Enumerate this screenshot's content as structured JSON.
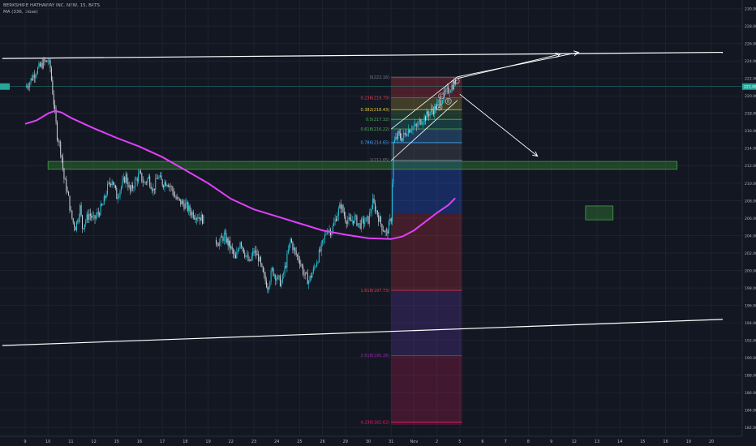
{
  "legend": {
    "symbol_line": "BERKSHIRE HATHAWAY INC. NEW, 15, BATS",
    "ma_line": "MA (336, close)"
  },
  "price_badge": "221.08",
  "colors": {
    "background": "#131722",
    "grid": "#1e2230",
    "candle_up": "#26c6da",
    "candle_down": "#d1d4dc",
    "ma": "#e040fb",
    "trendline": "#ffffff",
    "zone_green": "#2e7d32",
    "badge": "#26a69a"
  },
  "chart_data": {
    "type": "candlestick",
    "x_ticks": [
      "9",
      "10",
      "11",
      "12",
      "15",
      "16",
      "17",
      "18",
      "19",
      "22",
      "23",
      "24",
      "25",
      "26",
      "29",
      "30",
      "31",
      "Nov",
      "2",
      "5",
      "6",
      "7",
      "8",
      "9",
      "12",
      "13",
      "14",
      "15",
      "16",
      "19",
      "20"
    ],
    "y_ticks": [
      182,
      184,
      186,
      188,
      190,
      192,
      194,
      196,
      198,
      200,
      202,
      204,
      206,
      208,
      210,
      212,
      214,
      216,
      218,
      220,
      222,
      224,
      226,
      228,
      230
    ],
    "y_labels": [
      "182.00",
      "184.00",
      "186.00",
      "188.00",
      "190.00",
      "192.00",
      "194.00",
      "196.00",
      "198.00",
      "200.00",
      "202.00",
      "204.00",
      "206.00",
      "208.00",
      "210.00",
      "212.00",
      "214.00",
      "216.00",
      "218.00",
      "220.00",
      "222.00",
      "224.00",
      "226.00",
      "228.00",
      "230.00"
    ],
    "ylim": [
      181,
      231
    ],
    "last_price": 221.08,
    "price_path": [
      [
        0.0,
        221.0
      ],
      [
        0.2,
        221.6
      ],
      [
        0.4,
        222.6
      ],
      [
        0.6,
        223.2
      ],
      [
        0.8,
        223.8
      ],
      [
        1.0,
        224.0
      ],
      [
        1.1,
        223.2
      ],
      [
        1.2,
        220.5
      ],
      [
        1.3,
        218.0
      ],
      [
        1.4,
        215.5
      ],
      [
        1.5,
        214.5
      ],
      [
        1.6,
        213.0
      ],
      [
        1.7,
        210.5
      ],
      [
        1.8,
        209.5
      ],
      [
        1.9,
        208.2
      ],
      [
        2.0,
        206.5
      ],
      [
        2.1,
        205.5
      ],
      [
        2.2,
        205.0
      ],
      [
        2.3,
        206.0
      ],
      [
        2.4,
        207.2
      ],
      [
        2.5,
        205.0
      ],
      [
        2.6,
        205.5
      ],
      [
        2.8,
        206.5
      ],
      [
        3.0,
        205.8
      ],
      [
        3.2,
        206.6
      ],
      [
        3.4,
        207.5
      ],
      [
        3.6,
        209.5
      ],
      [
        3.8,
        210.5
      ],
      [
        4.0,
        208.5
      ],
      [
        4.2,
        209.6
      ],
      [
        4.4,
        210.8
      ],
      [
        4.6,
        209.0
      ],
      [
        4.8,
        210.2
      ],
      [
        5.0,
        211.0
      ],
      [
        5.2,
        210.0
      ],
      [
        5.4,
        210.6
      ],
      [
        5.6,
        209.2
      ],
      [
        5.8,
        210.8
      ],
      [
        6.0,
        210.0
      ],
      [
        6.2,
        210.2
      ],
      [
        6.4,
        209.4
      ],
      [
        6.6,
        208.2
      ],
      [
        6.8,
        207.8
      ],
      [
        7.0,
        207.5
      ],
      [
        7.2,
        206.8
      ],
      [
        7.4,
        206.4
      ],
      [
        7.6,
        206.2
      ],
      [
        7.8,
        205.8
      ],
      [
        8.3,
        203.5
      ],
      [
        8.5,
        203.2
      ],
      [
        8.7,
        204.0
      ],
      [
        9.0,
        202.5
      ],
      [
        9.2,
        201.2
      ],
      [
        9.4,
        203.5
      ],
      [
        9.6,
        202.0
      ],
      [
        9.8,
        200.8
      ],
      [
        10.0,
        202.2
      ],
      [
        10.2,
        201.5
      ],
      [
        10.4,
        199.5
      ],
      [
        10.6,
        198.2
      ],
      [
        10.8,
        200.0
      ],
      [
        11.0,
        199.2
      ],
      [
        11.2,
        198.5
      ],
      [
        11.4,
        200.8
      ],
      [
        11.6,
        203.5
      ],
      [
        11.8,
        202.0
      ],
      [
        12.0,
        201.2
      ],
      [
        12.2,
        199.5
      ],
      [
        12.4,
        198.8
      ],
      [
        12.6,
        200.0
      ],
      [
        12.8,
        201.5
      ],
      [
        13.0,
        203.0
      ],
      [
        13.2,
        204.8
      ],
      [
        13.4,
        204.5
      ],
      [
        13.6,
        206.2
      ],
      [
        13.8,
        207.5
      ],
      [
        14.0,
        206.0
      ],
      [
        14.2,
        205.5
      ],
      [
        14.4,
        206.0
      ],
      [
        14.6,
        205.2
      ],
      [
        14.8,
        205.6
      ],
      [
        15.0,
        205.8
      ],
      [
        15.2,
        207.8
      ],
      [
        15.4,
        206.5
      ],
      [
        15.6,
        205.0
      ],
      [
        15.8,
        204.2
      ],
      [
        16.0,
        206.0
      ],
      [
        16.1,
        214.5
      ],
      [
        16.3,
        215.5
      ],
      [
        16.5,
        215.2
      ],
      [
        16.7,
        216.0
      ],
      [
        16.9,
        216.5
      ],
      [
        17.1,
        216.4
      ],
      [
        17.3,
        217.2
      ],
      [
        17.5,
        217.6
      ],
      [
        17.7,
        218.2
      ],
      [
        17.9,
        218.5
      ],
      [
        18.1,
        219.3
      ],
      [
        18.3,
        220.0
      ],
      [
        18.5,
        220.7
      ],
      [
        18.7,
        221.3
      ],
      [
        18.8,
        221.6
      ]
    ],
    "ma_points": [
      [
        0.0,
        216.8
      ],
      [
        0.5,
        217.2
      ],
      [
        1.0,
        218.0
      ],
      [
        1.3,
        218.3
      ],
      [
        1.6,
        218.1
      ],
      [
        2.0,
        217.5
      ],
      [
        3.0,
        216.3
      ],
      [
        4.0,
        215.2
      ],
      [
        5.0,
        214.2
      ],
      [
        6.0,
        213.0
      ],
      [
        7.0,
        211.5
      ],
      [
        8.0,
        210.0
      ],
      [
        9.0,
        208.2
      ],
      [
        10.0,
        207.0
      ],
      [
        11.0,
        206.2
      ],
      [
        12.0,
        205.4
      ],
      [
        13.0,
        204.6
      ],
      [
        14.0,
        204.1
      ],
      [
        15.0,
        203.7
      ],
      [
        16.0,
        203.6
      ],
      [
        16.5,
        203.9
      ],
      [
        17.0,
        204.6
      ],
      [
        17.5,
        205.6
      ],
      [
        18.0,
        206.6
      ],
      [
        18.5,
        207.5
      ],
      [
        18.8,
        208.3
      ]
    ],
    "trend_upper": [
      [
        -1.0,
        224.3
      ],
      [
        30.5,
        225.0
      ]
    ],
    "trend_lower": [
      [
        -1.0,
        191.4
      ],
      [
        30.5,
        194.4
      ]
    ],
    "horizontal_line": 221.08,
    "green_zone_main": {
      "x0": 1.0,
      "x1": 28.5,
      "y0": 212.5,
      "y1": 211.6
    },
    "green_zone_small": {
      "x0": 24.5,
      "x1": 25.7,
      "y0": 207.4,
      "y1": 205.8
    },
    "fib_box": {
      "x0": 16.0,
      "x1": 19.1
    },
    "fib_levels": [
      {
        "ratio": "0",
        "price": 222.16,
        "label": "0(222.16)",
        "color": "#787b86"
      },
      {
        "ratio": "0.236",
        "price": 219.79,
        "label": "0.236(219.79)",
        "color": "#f23645"
      },
      {
        "ratio": "0.382",
        "price": 218.43,
        "label": "0.382(218.43)",
        "color": "#e2c840"
      },
      {
        "ratio": "0.5",
        "price": 217.32,
        "label": "0.5(217.32)",
        "color": "#4caf50"
      },
      {
        "ratio": "0.618",
        "price": 216.22,
        "label": "0.618(216.22)",
        "color": "#4caf50"
      },
      {
        "ratio": "0.786",
        "price": 214.65,
        "label": "0.786(214.65)",
        "color": "#42a5f5"
      },
      {
        "ratio": "1",
        "price": 212.65,
        "label": "1(212.65)",
        "color": "#787b86"
      },
      {
        "ratio": "1.618",
        "price": 197.73,
        "label": "1.618(197.73)",
        "color": "#f23645"
      },
      {
        "ratio": "2.618",
        "price": 190.26,
        "label": "2.618(190.26)",
        "color": "#9c27b0"
      },
      {
        "ratio": "4.236",
        "price": 182.62,
        "label": "4.236(182.62)",
        "color": "#e91e63"
      }
    ],
    "fib_bands": [
      {
        "from": 222.16,
        "to": 219.79,
        "color": "rgba(242,54,69,0.25)"
      },
      {
        "from": 219.79,
        "to": 218.43,
        "color": "rgba(226,200,64,0.22)"
      },
      {
        "from": 218.43,
        "to": 217.32,
        "color": "rgba(76,175,80,0.22)"
      },
      {
        "from": 217.32,
        "to": 216.22,
        "color": "rgba(38,166,154,0.25)"
      },
      {
        "from": 216.22,
        "to": 214.65,
        "color": "rgba(66,165,245,0.25)"
      },
      {
        "from": 214.65,
        "to": 212.65,
        "color": "rgba(120,123,134,0.22)"
      },
      {
        "from": 212.65,
        "to": 206.5,
        "color": "rgba(41,98,255,0.28)"
      },
      {
        "from": 206.5,
        "to": 197.73,
        "color": "rgba(242,54,69,0.22)"
      },
      {
        "from": 197.73,
        "to": 190.26,
        "color": "rgba(103,58,183,0.25)"
      },
      {
        "from": 190.26,
        "to": 182.3,
        "color": "rgba(233,30,99,0.22)"
      }
    ],
    "channel_upper": [
      [
        16.0,
        216.2
      ],
      [
        18.9,
        222.2
      ]
    ],
    "channel_lower": [
      [
        16.0,
        212.6
      ],
      [
        18.9,
        219.5
      ]
    ],
    "arrows": [
      {
        "from": [
          18.9,
          222.0
        ],
        "to": [
          23.4,
          224.8
        ]
      },
      {
        "from": [
          18.9,
          222.2
        ],
        "to": [
          24.2,
          225.0
        ]
      },
      {
        "from": [
          19.0,
          220.2
        ],
        "to": [
          22.4,
          213.1
        ]
      }
    ],
    "wave_labels": [
      {
        "text": "A",
        "x": 18.1,
        "y": 218.7
      },
      {
        "text": "B",
        "x": 18.5,
        "y": 219.4
      },
      {
        "text": "C",
        "x": 18.2,
        "y": 220.0
      },
      {
        "text": "E",
        "x": 18.85,
        "y": 221.7
      }
    ]
  }
}
